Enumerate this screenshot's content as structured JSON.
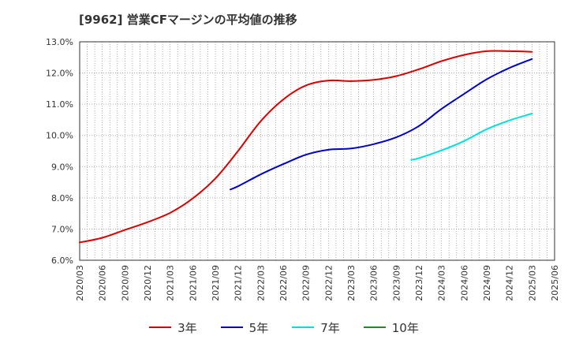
{
  "title": "[9962]  営業CFマージンの平均値の推移",
  "chart_data": {
    "type": "line",
    "title": "[9962]  営業CFマージンの平均値の推移",
    "xlabel": "",
    "ylabel": "",
    "ylim": [
      6.0,
      13.0
    ],
    "y_ticks": [
      "6.0%",
      "7.0%",
      "8.0%",
      "9.0%",
      "10.0%",
      "11.0%",
      "12.0%",
      "13.0%"
    ],
    "x_ticks": [
      "2020/03",
      "2020/06",
      "2020/09",
      "2020/12",
      "2021/03",
      "2021/06",
      "2021/09",
      "2021/12",
      "2022/03",
      "2022/06",
      "2022/09",
      "2022/12",
      "2023/03",
      "2023/06",
      "2023/09",
      "2023/12",
      "2024/03",
      "2024/06",
      "2024/09",
      "2024/12",
      "2025/03",
      "2025/06"
    ],
    "grid": true,
    "legend_position": "bottom",
    "series": [
      {
        "name": "3年",
        "color": "#dd0000",
        "points": [
          [
            "2020/03",
            6.57
          ],
          [
            "2020/06",
            6.72
          ],
          [
            "2020/09",
            6.97
          ],
          [
            "2020/12",
            7.22
          ],
          [
            "2021/03",
            7.52
          ],
          [
            "2021/06",
            7.98
          ],
          [
            "2021/09",
            8.62
          ],
          [
            "2021/12",
            9.5
          ],
          [
            "2022/03",
            10.45
          ],
          [
            "2022/06",
            11.15
          ],
          [
            "2022/09",
            11.6
          ],
          [
            "2022/12",
            11.76
          ],
          [
            "2023/03",
            11.74
          ],
          [
            "2023/06",
            11.78
          ],
          [
            "2023/09",
            11.9
          ],
          [
            "2023/12",
            12.12
          ],
          [
            "2024/03",
            12.38
          ],
          [
            "2024/06",
            12.58
          ],
          [
            "2024/09",
            12.7
          ],
          [
            "2024/12",
            12.7
          ],
          [
            "2025/03",
            12.68
          ]
        ]
      },
      {
        "name": "5年",
        "color": "#0000cc",
        "points": [
          [
            "2021/11",
            8.27
          ],
          [
            "2021/12",
            8.37
          ],
          [
            "2022/03",
            8.75
          ],
          [
            "2022/06",
            9.08
          ],
          [
            "2022/09",
            9.38
          ],
          [
            "2022/12",
            9.54
          ],
          [
            "2023/03",
            9.58
          ],
          [
            "2023/06",
            9.72
          ],
          [
            "2023/09",
            9.94
          ],
          [
            "2023/12",
            10.3
          ],
          [
            "2024/03",
            10.85
          ],
          [
            "2024/06",
            11.33
          ],
          [
            "2024/09",
            11.8
          ],
          [
            "2024/12",
            12.16
          ],
          [
            "2025/03",
            12.45
          ]
        ]
      },
      {
        "name": "7年",
        "color": "#00e0e0",
        "points": [
          [
            "2023/11",
            9.22
          ],
          [
            "2023/12",
            9.27
          ],
          [
            "2024/03",
            9.52
          ],
          [
            "2024/06",
            9.82
          ],
          [
            "2024/09",
            10.2
          ],
          [
            "2024/12",
            10.48
          ],
          [
            "2025/03",
            10.7
          ]
        ]
      },
      {
        "name": "10年",
        "color": "#228b22",
        "points": []
      }
    ]
  }
}
